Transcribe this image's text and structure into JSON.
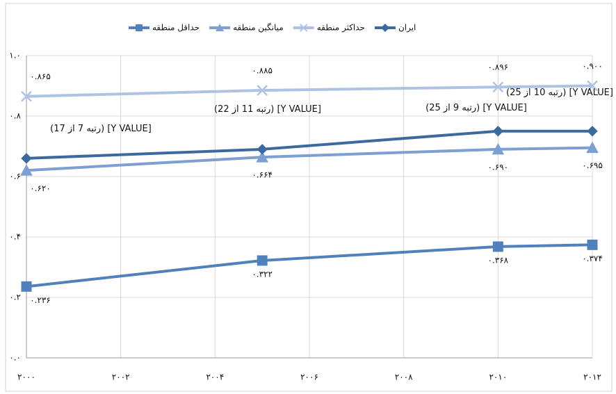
{
  "chart_data": {
    "type": "line",
    "x": [
      2000,
      2005,
      2010,
      2012
    ],
    "xlim": [
      2000,
      2012
    ],
    "xticks": [
      {
        "value": 2000,
        "label": "۲۰۰۰"
      },
      {
        "value": 2002,
        "label": "۲۰۰۲"
      },
      {
        "value": 2004,
        "label": "۲۰۰۴"
      },
      {
        "value": 2006,
        "label": "۲۰۰۶"
      },
      {
        "value": 2008,
        "label": "۲۰۰۸"
      },
      {
        "value": 2010,
        "label": "۲۰۱۰"
      },
      {
        "value": 2012,
        "label": "۲۰۱۲"
      }
    ],
    "ylim": [
      0,
      1
    ],
    "yticks": [
      {
        "value": 0,
        "label": "۰.۰"
      },
      {
        "value": 0.2,
        "label": "۰.۲"
      },
      {
        "value": 0.4,
        "label": "۰.۴"
      },
      {
        "value": 0.6,
        "label": "۰.۶"
      },
      {
        "value": 0.8,
        "label": "۰.۸"
      },
      {
        "value": 1,
        "label": "۱.۰"
      }
    ],
    "grid": true,
    "legend": "top",
    "series": [
      {
        "name": "حداقل منطقه",
        "color": "#5181bd",
        "marker": "square",
        "values": [
          0.236,
          0.322,
          0.368,
          0.374
        ],
        "value_labels": [
          "۰.۲۳۶",
          "۰.۳۲۲",
          "۰.۳۶۸",
          "۰.۳۷۴"
        ]
      },
      {
        "name": "میانگین منطقه",
        "color": "#7d9fd2",
        "marker": "triangle",
        "values": [
          0.62,
          0.664,
          0.69,
          0.695
        ],
        "value_labels": [
          "۰.۶۲۰",
          "۰.۶۶۴",
          "۰.۶۹۰",
          "۰.۶۹۵"
        ]
      },
      {
        "name": "حداکثر منطقه",
        "color": "#aec3e3",
        "marker": "x",
        "values": [
          0.865,
          0.885,
          0.896,
          0.9
        ],
        "value_labels": [
          "۰.۸۶۵",
          "۰.۸۸۵",
          "۰.۸۹۶",
          "۰.۹۰۰"
        ]
      },
      {
        "name": "ایران",
        "color": "#3d6a9e",
        "marker": "diamond",
        "values": [
          0.66,
          0.69,
          0.75,
          0.75
        ]
      }
    ],
    "annotations": [
      "[Y VALUE] (رتبه 7 از 17)",
      "[Y VALUE] (رتبه 11 از 22)",
      "[Y VALUE] (رتبه 9 از 25)",
      "[Y VALUE] (رتبه 10 از 25)"
    ]
  }
}
